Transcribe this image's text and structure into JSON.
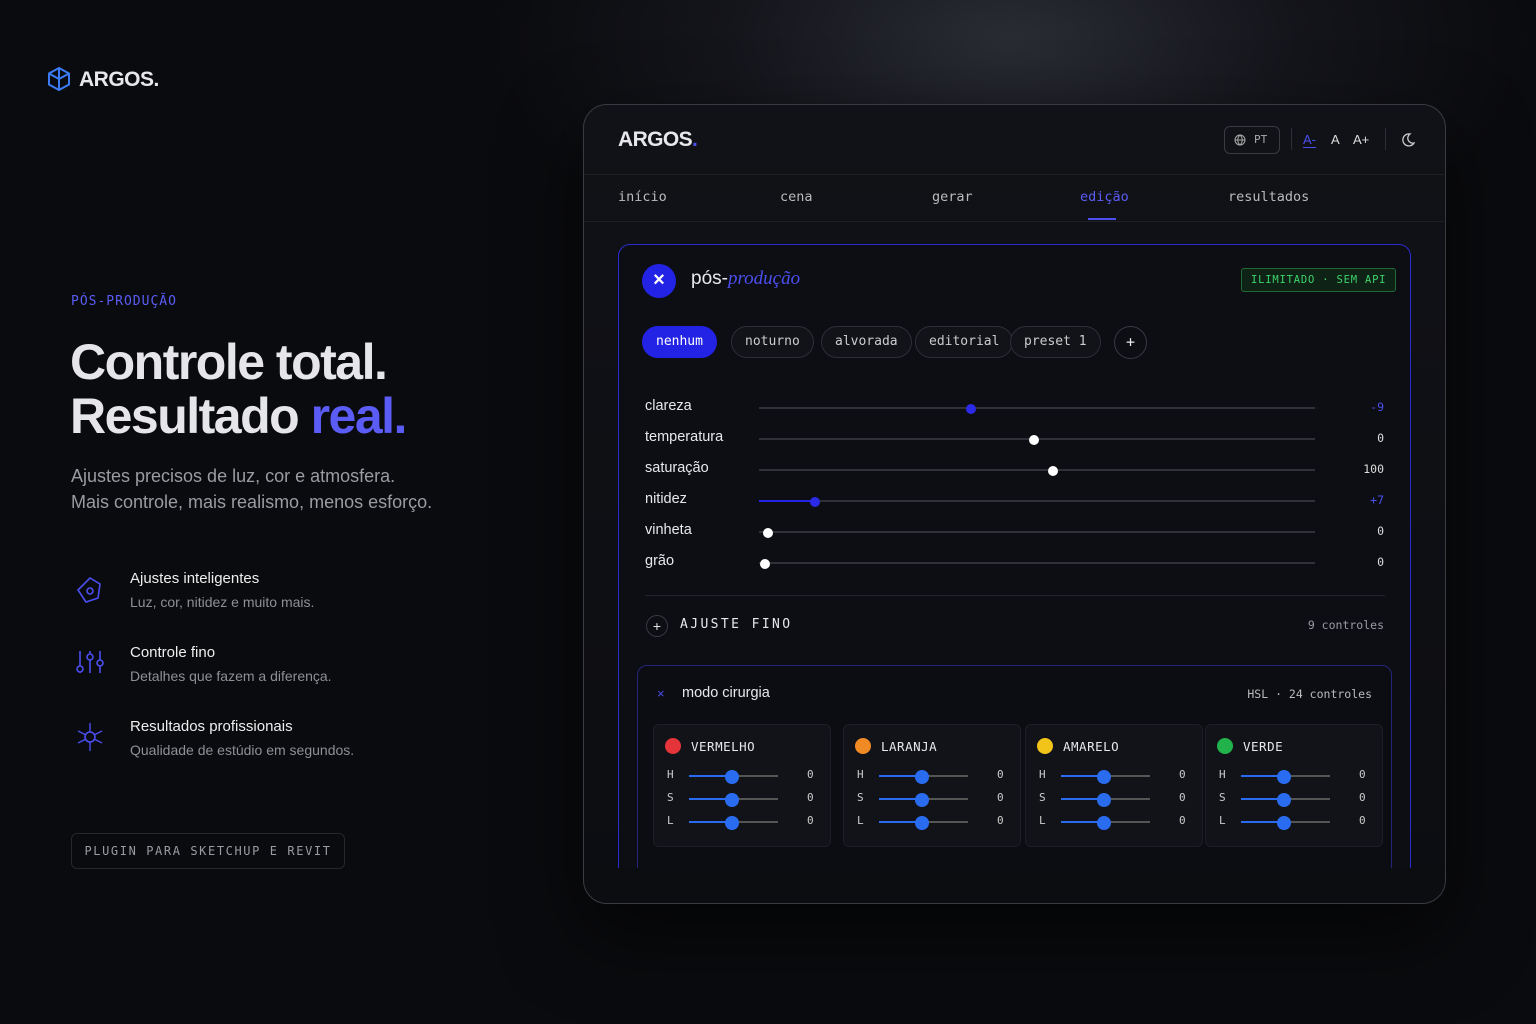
{
  "brand": "ARGOS.",
  "hero": {
    "eyebrow": "PÓS-PRODUÇÃO",
    "title_line1": "Controle total.",
    "title_line2": "Resultado ",
    "title_accent": "real.",
    "subtitle_line1": "Ajustes precisos de luz, cor e atmosfera.",
    "subtitle_line2": "Mais controle, mais realismo, menos esforço.",
    "features": [
      {
        "title": "Ajustes inteligentes",
        "description": "Luz, cor, nitidez e muito mais."
      },
      {
        "title": "Controle fino",
        "description": "Detalhes que fazem a diferença."
      },
      {
        "title": "Resultados profissionais",
        "description": "Qualidade de estúdio em segundos."
      }
    ],
    "badge": "PLUGIN PARA SKETCHUP E REVIT"
  },
  "app": {
    "brand": "ARGOS",
    "brand_dot": ".",
    "language": "PT",
    "font_sizes": [
      "A-",
      "A",
      "A+"
    ],
    "tabs": [
      "início",
      "cena",
      "gerar",
      "edição",
      "resultados"
    ],
    "active_tab": 3,
    "panel": {
      "close": "×",
      "title": "pós-",
      "title_accent": "produção",
      "badge": "ILIMITADO · SEM API",
      "presets": [
        "nenhum",
        "noturno",
        "alvorada",
        "editorial",
        "preset 1"
      ],
      "active_preset": 0,
      "add_preset": "+",
      "sliders": [
        {
          "label": "clareza",
          "value": "-9"
        },
        {
          "label": "temperatura",
          "value": "0"
        },
        {
          "label": "saturação",
          "value": "100"
        },
        {
          "label": "nitidez",
          "value": "+7"
        },
        {
          "label": "vinheta",
          "value": "0"
        },
        {
          "label": "grão",
          "value": "0"
        }
      ],
      "fine_tune": {
        "icon": "+",
        "label": "AJUSTE FINO",
        "count": "9 controles"
      },
      "surgery": {
        "close": "×",
        "title": "modo cirurgia",
        "meta": "HSL · 24 controles",
        "colors": [
          {
            "name": "VERMELHO",
            "color": "#e5343a",
            "channels": [
              {
                "label": "H",
                "value": "0"
              },
              {
                "label": "S",
                "value": "0"
              },
              {
                "label": "L",
                "value": "0"
              }
            ]
          },
          {
            "name": "LARANJA",
            "color": "#f08a24",
            "channels": [
              {
                "label": "H",
                "value": "0"
              },
              {
                "label": "S",
                "value": "0"
              },
              {
                "label": "L",
                "value": "0"
              }
            ]
          },
          {
            "name": "AMARELO",
            "color": "#f2c318",
            "channels": [
              {
                "label": "H",
                "value": "0"
              },
              {
                "label": "S",
                "value": "0"
              },
              {
                "label": "L",
                "value": "0"
              }
            ]
          },
          {
            "name": "VERDE",
            "color": "#22b24c",
            "channels": [
              {
                "label": "H",
                "value": "0"
              },
              {
                "label": "S",
                "value": "0"
              },
              {
                "label": "L",
                "value": "0"
              }
            ]
          }
        ]
      }
    }
  }
}
